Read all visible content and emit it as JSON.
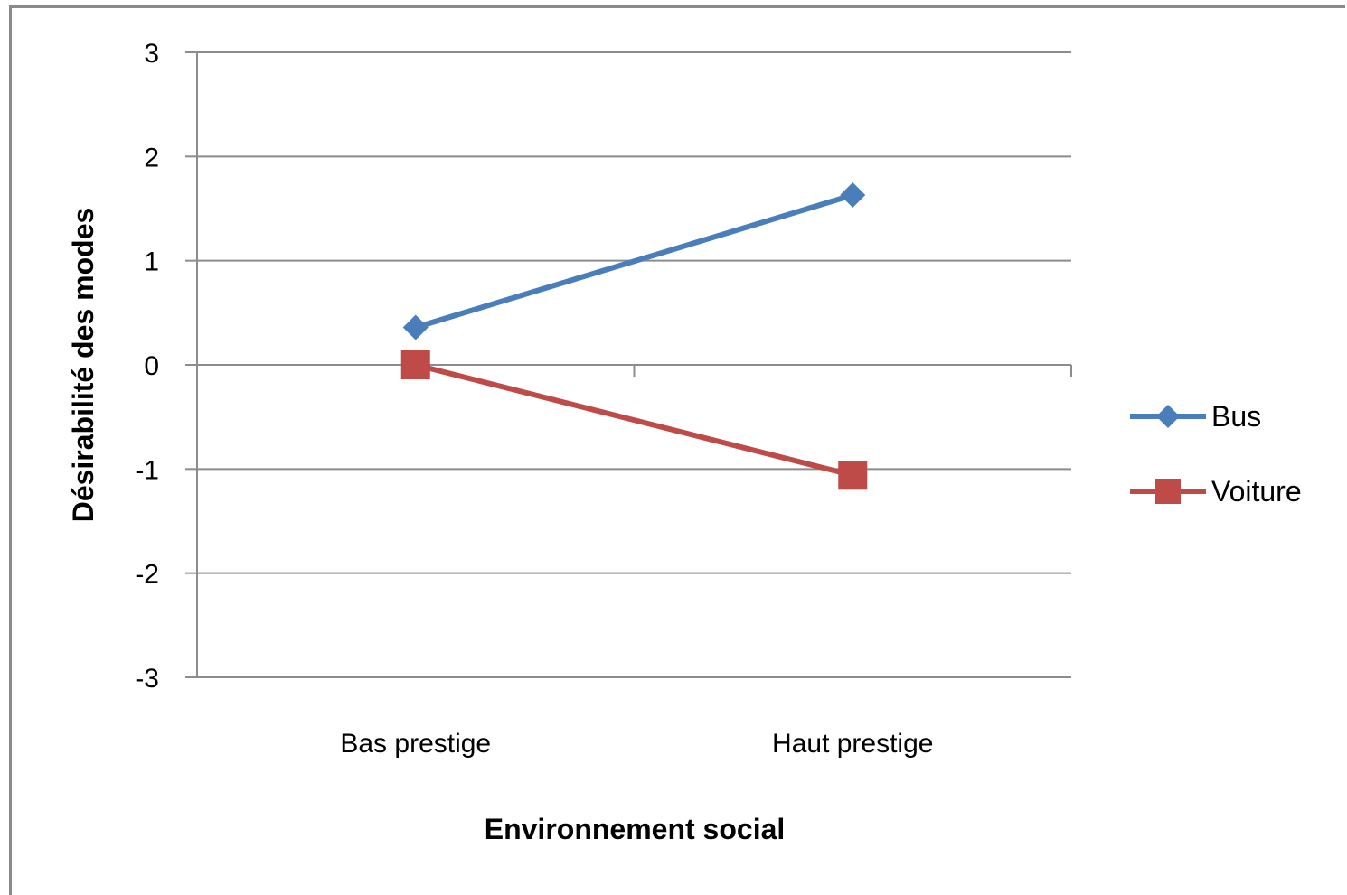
{
  "chart_data": {
    "type": "line",
    "title": "",
    "xlabel": "Environnement social",
    "ylabel": "Désirabilité des modes",
    "categories": [
      "Bas prestige",
      "Haut prestige"
    ],
    "ylim": [
      -3,
      3
    ],
    "yticks": [
      "3",
      "2",
      "1",
      "0",
      "-1",
      "-2",
      "-3"
    ],
    "grid": true,
    "legend_position": "right",
    "series": [
      {
        "name": "Bus",
        "values": [
          0.36,
          1.63
        ],
        "color": "#4a7ebb",
        "marker": "diamond"
      },
      {
        "name": "Voiture",
        "values": [
          0.0,
          -1.06
        ],
        "color": "#be4b48",
        "marker": "square"
      }
    ]
  }
}
